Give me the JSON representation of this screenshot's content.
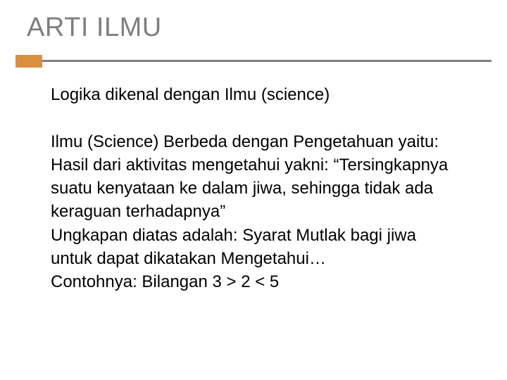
{
  "title": {
    "text": "ARTI ILMU",
    "color": "#7f7f7f",
    "fontsize": 38
  },
  "rule": {
    "accent_color": "#d98f3f",
    "line_color": "#7f7f7f"
  },
  "body": {
    "color": "#000000",
    "fontsize": 24,
    "p1": "Logika dikenal dengan Ilmu (science)",
    "p2": "Ilmu (Science) Berbeda dengan Pengetahuan yaitu: Hasil dari aktivitas mengetahui yakni: “Tersingkapnya suatu kenyataan ke dalam jiwa, sehingga tidak ada keraguan terhadapnya”",
    "p3": "Ungkapan diatas adalah: Syarat Mutlak bagi jiwa untuk dapat dikatakan Mengetahui…",
    "p4": "Contohnya: Bilangan 3 > 2 < 5"
  },
  "background_color": "#ffffff"
}
